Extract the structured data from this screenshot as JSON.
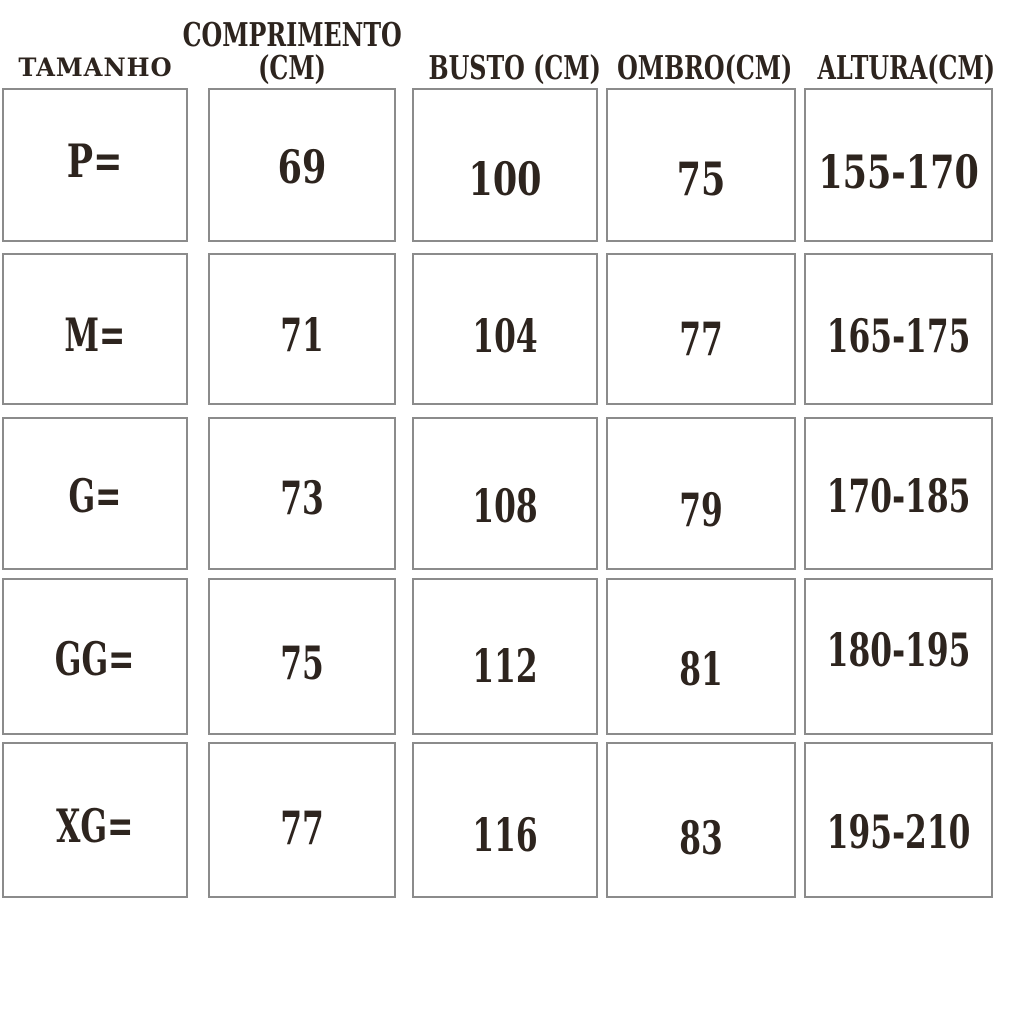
{
  "page": {
    "background": "#ffffff",
    "description_colors": {
      "text_ink": "#2d241e",
      "cell_border": "#8b8b8b"
    }
  },
  "table": {
    "headers": {
      "tamanho": {
        "line1": "TAMANHO"
      },
      "comprimento": {
        "line1": "COMPRIMENTO",
        "line2": "(CM)"
      },
      "busto": {
        "line1": "BUSTO (CM)"
      },
      "ombro": {
        "line1": "OMBRO(CM)"
      },
      "altura": {
        "line1": "ALTURA(CM)"
      }
    },
    "rows": [
      {
        "tamanho": "P=",
        "comprimento": "69",
        "busto": "100",
        "ombro": "75",
        "altura": "155-170"
      },
      {
        "tamanho": "M=",
        "comprimento": "71",
        "busto": "104",
        "ombro": "77",
        "altura": "165-175"
      },
      {
        "tamanho": "G=",
        "comprimento": "73",
        "busto": "108",
        "ombro": "79",
        "altura": "170-185"
      },
      {
        "tamanho": "GG=",
        "comprimento": "75",
        "busto": "112",
        "ombro": "81",
        "altura": "180-195"
      },
      {
        "tamanho": "XG=",
        "comprimento": "77",
        "busto": "116",
        "ombro": "83",
        "altura": "195-210"
      }
    ]
  },
  "chart_data": {
    "type": "table",
    "title": "",
    "columns": [
      "TAMANHO",
      "COMPRIMENTO (CM)",
      "BUSTO (CM)",
      "OMBRO(CM)",
      "ALTURA(CM)"
    ],
    "rows": [
      [
        "P=",
        69,
        100,
        75,
        "155-170"
      ],
      [
        "M=",
        71,
        104,
        77,
        "165-175"
      ],
      [
        "G=",
        73,
        108,
        79,
        "170-185"
      ],
      [
        "GG=",
        75,
        112,
        81,
        "180-195"
      ],
      [
        "XG=",
        77,
        116,
        83,
        "195-210"
      ]
    ],
    "layout_hints": {
      "grid": "separate bordered boxes per cell",
      "header_position": "top, outside boxes",
      "text_color": "#2d241e",
      "border_color": "#8b8b8b"
    }
  }
}
